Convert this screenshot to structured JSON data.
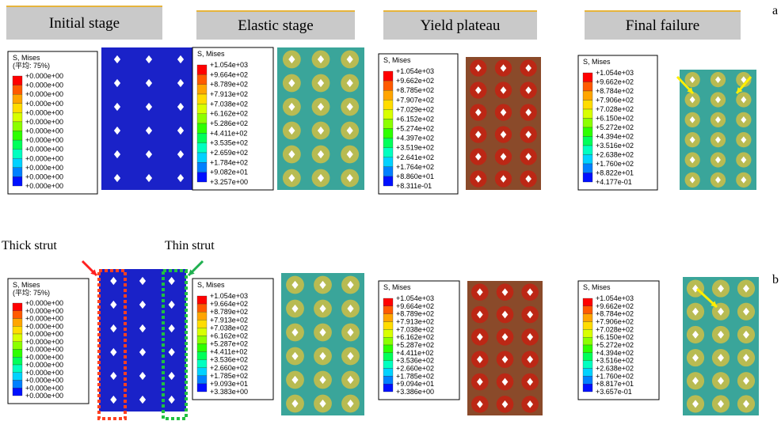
{
  "header": {
    "stages": [
      "Initial stage",
      "Elastic stage",
      "Yield plateau",
      "Final failure"
    ]
  },
  "rows": [
    {
      "label": "a",
      "panels": [
        {
          "legend_title": "S, Mises",
          "legend_subtitle": "(平均: 75%)",
          "levels": [
            "+0.000e+00",
            "+0.000e+00",
            "+0.000e+00",
            "+0.000e+00",
            "+0.000e+00",
            "+0.000e+00",
            "+0.000e+00",
            "+0.000e+00",
            "+0.000e+00",
            "+0.000e+00",
            "+0.000e+00",
            "+0.000e+00",
            "+0.000e+00"
          ]
        },
        {
          "legend_title": "S, Mises",
          "levels": [
            "+1.054e+03",
            "+9.664e+02",
            "+8.789e+02",
            "+7.913e+02",
            "+7.038e+02",
            "+6.162e+02",
            "+5.286e+02",
            "+4.411e+02",
            "+3.535e+02",
            "+2.659e+02",
            "+1.784e+02",
            "+9.082e+01",
            "+3.257e+00"
          ]
        },
        {
          "legend_title": "S, Mises",
          "levels": [
            "+1.054e+03",
            "+9.662e+02",
            "+8.785e+02",
            "+7.907e+02",
            "+7.029e+02",
            "+6.152e+02",
            "+5.274e+02",
            "+4.397e+02",
            "+3.519e+02",
            "+2.641e+02",
            "+1.764e+02",
            "+8.860e+01",
            "+8.311e-01"
          ]
        },
        {
          "legend_title": "S, Mises",
          "levels": [
            "+1.054e+03",
            "+9.662e+02",
            "+8.784e+02",
            "+7.906e+02",
            "+7.028e+02",
            "+6.150e+02",
            "+5.272e+02",
            "+4.394e+02",
            "+3.516e+02",
            "+2.638e+02",
            "+1.760e+02",
            "+8.822e+01",
            "+4.177e-01"
          ]
        }
      ]
    },
    {
      "label": "b",
      "panels": [
        {
          "legend_title": "S, Mises",
          "legend_subtitle": "(平均: 75%)",
          "levels": [
            "+0.000e+00",
            "+0.000e+00",
            "+0.000e+00",
            "+0.000e+00",
            "+0.000e+00",
            "+0.000e+00",
            "+0.000e+00",
            "+0.000e+00",
            "+0.000e+00",
            "+0.000e+00",
            "+0.000e+00",
            "+0.000e+00",
            "+0.000e+00"
          ]
        },
        {
          "legend_title": "S, Mises",
          "levels": [
            "+1.054e+03",
            "+9.664e+02",
            "+8.789e+02",
            "+7.913e+02",
            "+7.038e+02",
            "+6.162e+02",
            "+5.287e+02",
            "+4.411e+02",
            "+3.536e+02",
            "+2.660e+02",
            "+1.785e+02",
            "+9.093e+01",
            "+3.383e+00"
          ]
        },
        {
          "legend_title": "S, Mises",
          "levels": [
            "+1.054e+03",
            "+9.664e+02",
            "+8.789e+02",
            "+7.913e+02",
            "+7.038e+02",
            "+6.162e+02",
            "+5.287e+02",
            "+4.411e+02",
            "+3.536e+02",
            "+2.660e+02",
            "+1.785e+02",
            "+9.094e+01",
            "+3.386e+00"
          ]
        },
        {
          "legend_title": "S, Mises",
          "levels": [
            "+1.054e+03",
            "+9.662e+02",
            "+8.784e+02",
            "+7.906e+02",
            "+7.028e+02",
            "+6.150e+02",
            "+5.272e+02",
            "+4.394e+02",
            "+3.516e+02",
            "+2.638e+02",
            "+1.760e+02",
            "+8.817e+01",
            "+3.657e-01"
          ]
        }
      ]
    }
  ],
  "annotations": {
    "thick": "Thick strut",
    "thin": "Thin strut"
  }
}
